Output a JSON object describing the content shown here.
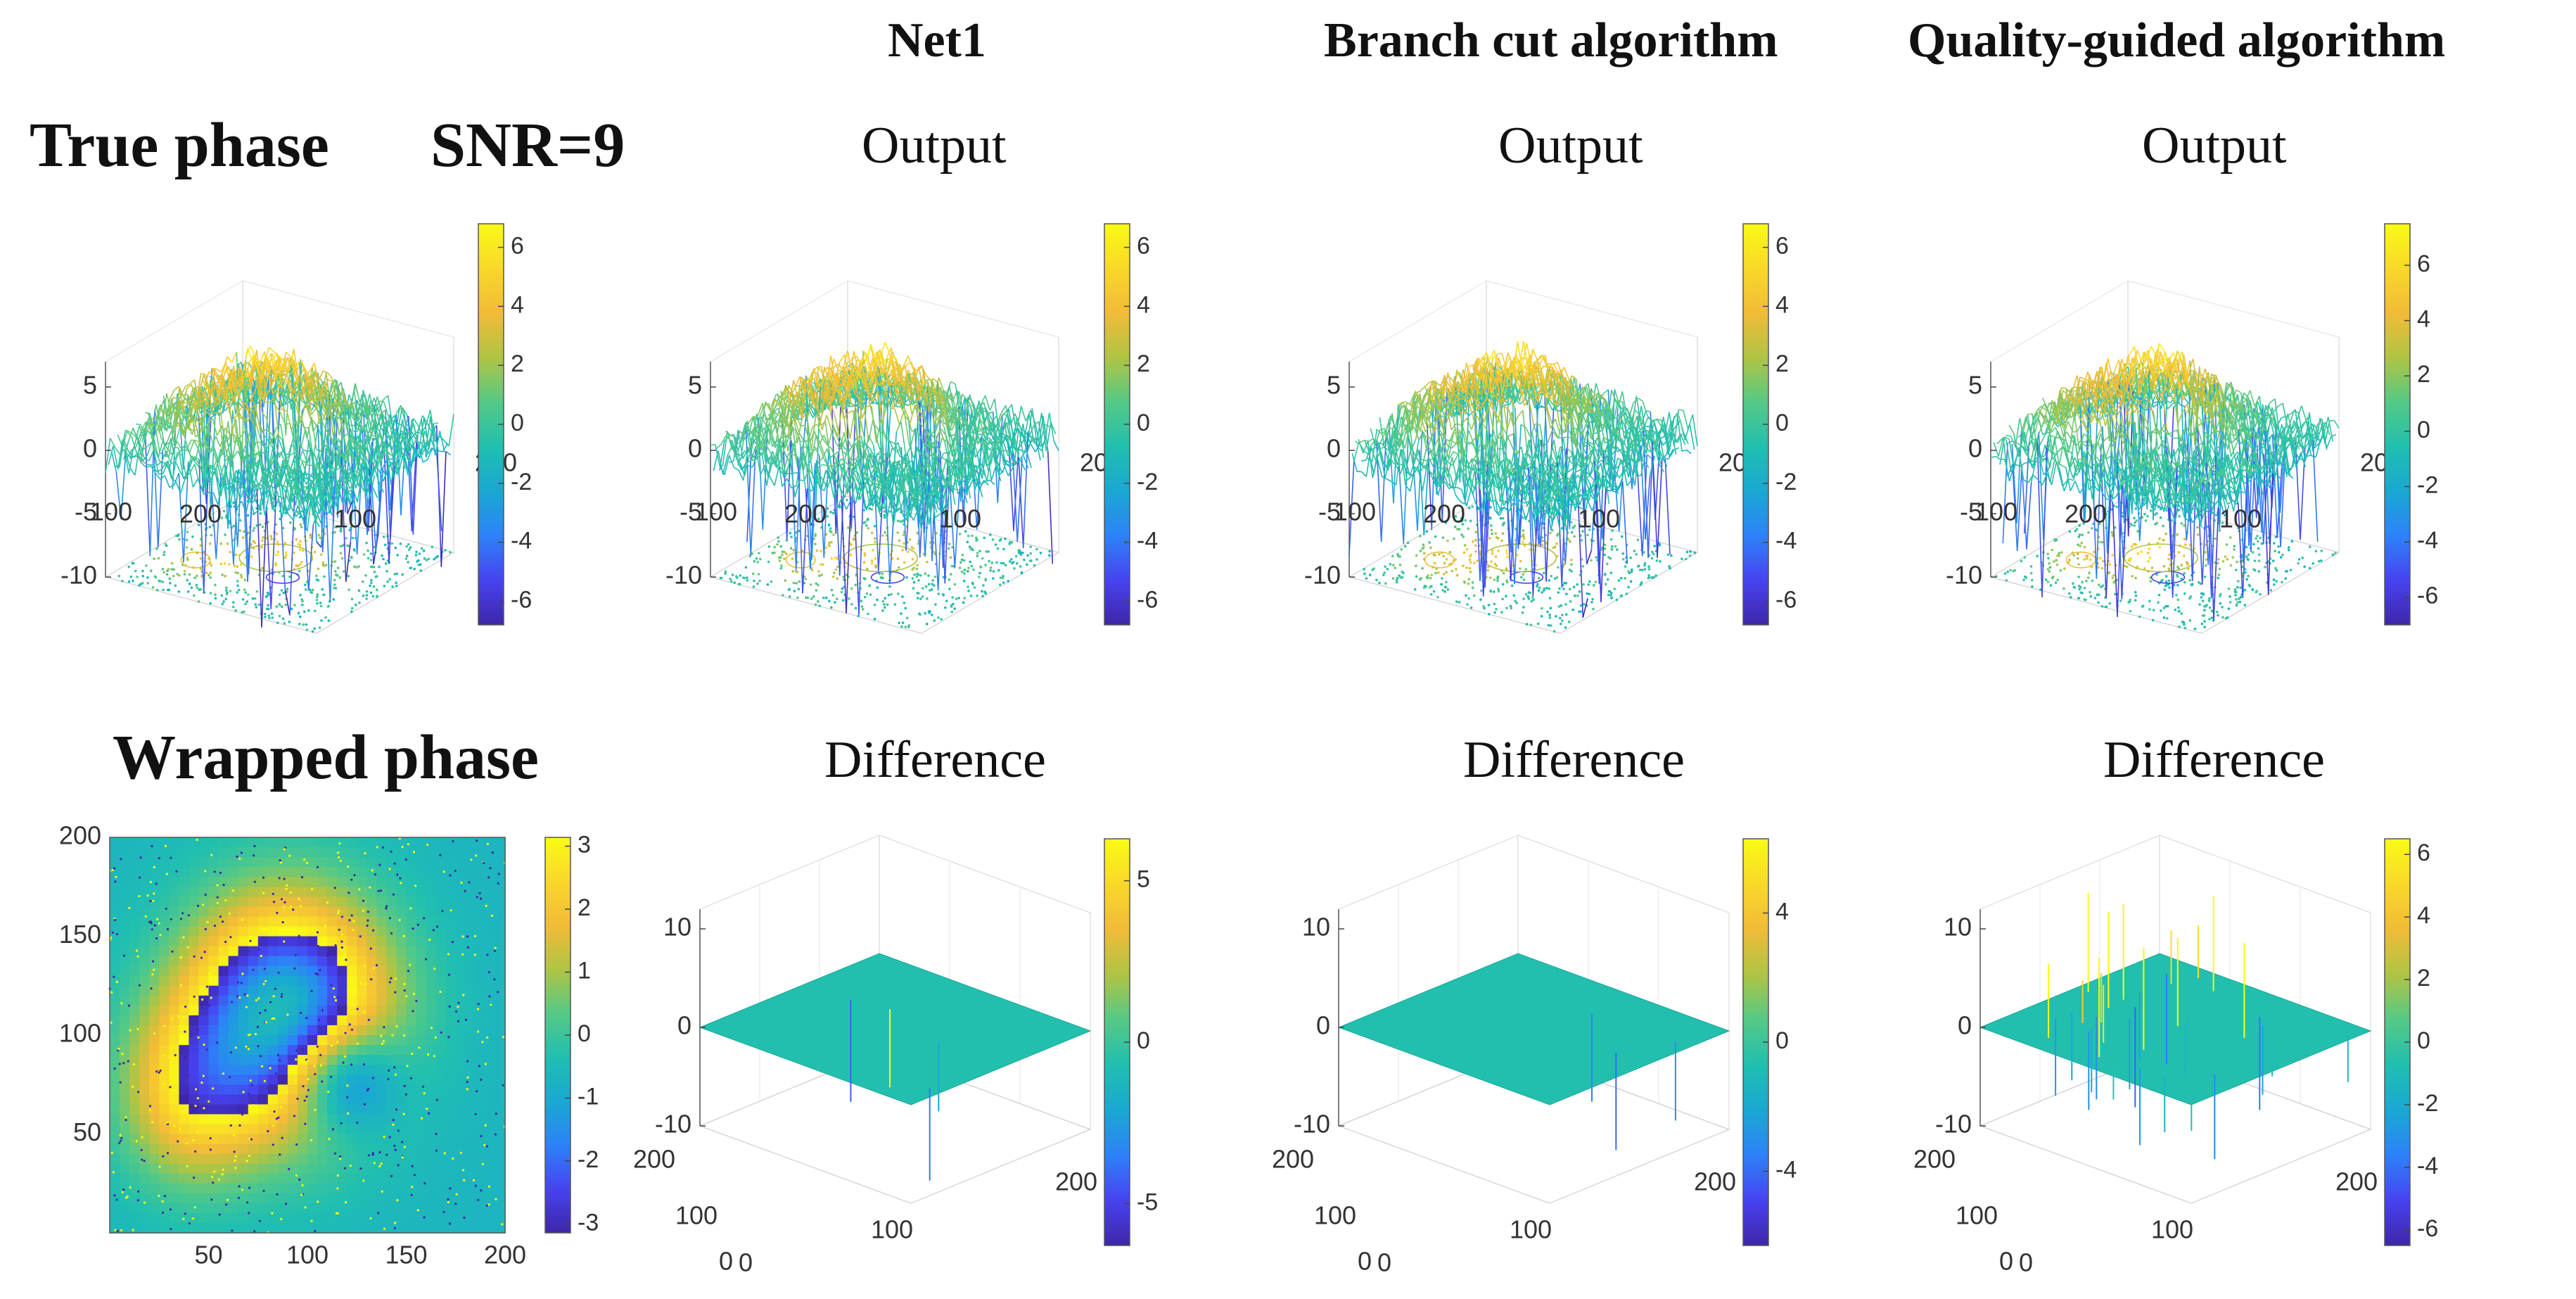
{
  "headers": {
    "true_phase": "True phase",
    "snr": "SNR=9",
    "wrapped_phase": "Wrapped phase",
    "net1": "Net1",
    "branch_cut": "Branch cut algorithm",
    "quality_guided": "Quality-guided algorithm",
    "output": "Output",
    "difference": "Difference"
  },
  "colormap": [
    "#3e26a8",
    "#4743f1",
    "#2d82f8",
    "#1aa8d2",
    "#20bfb0",
    "#56c985",
    "#b0c444",
    "#f2bb38",
    "#f9d829",
    "#f9fb15"
  ],
  "chart_data": [
    {
      "id": "true-phase-surface",
      "type": "surface3d",
      "title": "True phase",
      "zlim": [
        -10,
        7
      ],
      "z_ticks": [
        "5",
        "0",
        "-5",
        "-10"
      ],
      "x_ticks": [
        "100",
        "200"
      ],
      "y_ticks": [
        "100",
        "200"
      ],
      "colorbar_ticks": [
        "6",
        "4",
        "2",
        "0",
        "-2",
        "-4",
        "-6"
      ],
      "colorbar_range": [
        -6.8,
        6.8
      ],
      "description_values": {
        "peak_height": 5.5,
        "trough_height": -2.5,
        "noise_amplitude": 1.6
      }
    },
    {
      "id": "net1-output",
      "type": "surface3d",
      "title": "Output",
      "z_ticks": [
        "5",
        "0",
        "-5",
        "-10"
      ],
      "x_ticks": [
        "100",
        "200"
      ],
      "y_ticks": [
        "100",
        "200"
      ],
      "colorbar_ticks": [
        "6",
        "4",
        "2",
        "0",
        "-2",
        "-4",
        "-6"
      ],
      "colorbar_range": [
        -6.8,
        6.8
      ]
    },
    {
      "id": "branch-cut-output",
      "type": "surface3d",
      "title": "Output",
      "z_ticks": [
        "5",
        "0",
        "-5",
        "-10"
      ],
      "x_ticks": [
        "100",
        "200"
      ],
      "y_ticks": [
        "100",
        "200"
      ],
      "colorbar_ticks": [
        "6",
        "4",
        "2",
        "0",
        "-2",
        "-4",
        "-6"
      ],
      "colorbar_range": [
        -6.8,
        6.8
      ]
    },
    {
      "id": "quality-guided-output",
      "type": "surface3d",
      "title": "Output",
      "z_ticks": [
        "5",
        "0",
        "-5",
        "-10"
      ],
      "x_ticks": [
        "100",
        "200"
      ],
      "y_ticks": [
        "100",
        "200"
      ],
      "colorbar_ticks": [
        "6",
        "4",
        "2",
        "0",
        "-2",
        "-4",
        "-6"
      ],
      "colorbar_range": [
        -7,
        7.5
      ]
    },
    {
      "id": "wrapped-phase-map",
      "type": "heatmap",
      "title": "Wrapped phase",
      "xlim": [
        0,
        200
      ],
      "ylim": [
        0,
        200
      ],
      "x_ticks": [
        "50",
        "100",
        "150",
        "200"
      ],
      "y_ticks": [
        "200",
        "150",
        "100",
        "50"
      ],
      "colorbar_ticks": [
        "3",
        "2",
        "1",
        "0",
        "-1",
        "-2",
        "-3"
      ],
      "colorbar_range": [
        -3.14,
        3.14
      ]
    },
    {
      "id": "net1-difference",
      "type": "surface3d",
      "title": "Difference",
      "zlim": [
        -10,
        10
      ],
      "z_ticks": [
        "10",
        "0",
        "-10"
      ],
      "x_ticks": [
        "0",
        "100",
        "200"
      ],
      "y_ticks": [
        "0",
        "100",
        "200"
      ],
      "colorbar_ticks": [
        "5",
        "0",
        "-5"
      ],
      "colorbar_range": [
        -6.3,
        6.3
      ],
      "spike_count": 4
    },
    {
      "id": "branch-cut-difference",
      "type": "surface3d",
      "title": "Difference",
      "zlim": [
        -10,
        10
      ],
      "z_ticks": [
        "10",
        "0",
        "-10"
      ],
      "x_ticks": [
        "0",
        "100",
        "200"
      ],
      "y_ticks": [
        "0",
        "100",
        "200"
      ],
      "colorbar_ticks": [
        "4",
        "0",
        "-4"
      ],
      "colorbar_range": [
        -6.3,
        6.3
      ],
      "spike_count": 3
    },
    {
      "id": "quality-guided-difference",
      "type": "surface3d",
      "title": "Difference",
      "zlim": [
        -10,
        10
      ],
      "z_ticks": [
        "10",
        "0",
        "-10"
      ],
      "x_ticks": [
        "0",
        "100",
        "200"
      ],
      "y_ticks": [
        "0",
        "100",
        "200"
      ],
      "colorbar_ticks": [
        "6",
        "4",
        "2",
        "0",
        "-2",
        "-4",
        "-6"
      ],
      "colorbar_range": [
        -6.5,
        6.5
      ],
      "spike_count": 36
    }
  ]
}
